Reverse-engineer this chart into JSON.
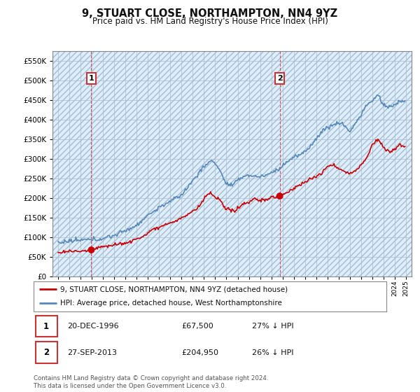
{
  "title": "9, STUART CLOSE, NORTHAMPTON, NN4 9YZ",
  "subtitle": "Price paid vs. HM Land Registry's House Price Index (HPI)",
  "legend_line1": "9, STUART CLOSE, NORTHAMPTON, NN4 9YZ (detached house)",
  "legend_line2": "HPI: Average price, detached house, West Northamptonshire",
  "transaction1_date": "20-DEC-1996",
  "transaction1_price": "£67,500",
  "transaction1_hpi": "27% ↓ HPI",
  "transaction1_year": 1996.96,
  "transaction1_value": 67500,
  "transaction2_date": "27-SEP-2013",
  "transaction2_price": "£204,950",
  "transaction2_hpi": "26% ↓ HPI",
  "transaction2_year": 2013.75,
  "transaction2_value": 204950,
  "ylim": [
    0,
    575000
  ],
  "xlim": [
    1993.5,
    2025.5
  ],
  "yticks": [
    0,
    50000,
    100000,
    150000,
    200000,
    250000,
    300000,
    350000,
    400000,
    450000,
    500000,
    550000
  ],
  "price_line_color": "#cc0000",
  "hpi_line_color": "#5588bb",
  "plot_bg_color": "#ddeeff",
  "footer": "Contains HM Land Registry data © Crown copyright and database right 2024.\nThis data is licensed under the Open Government Licence v3.0."
}
